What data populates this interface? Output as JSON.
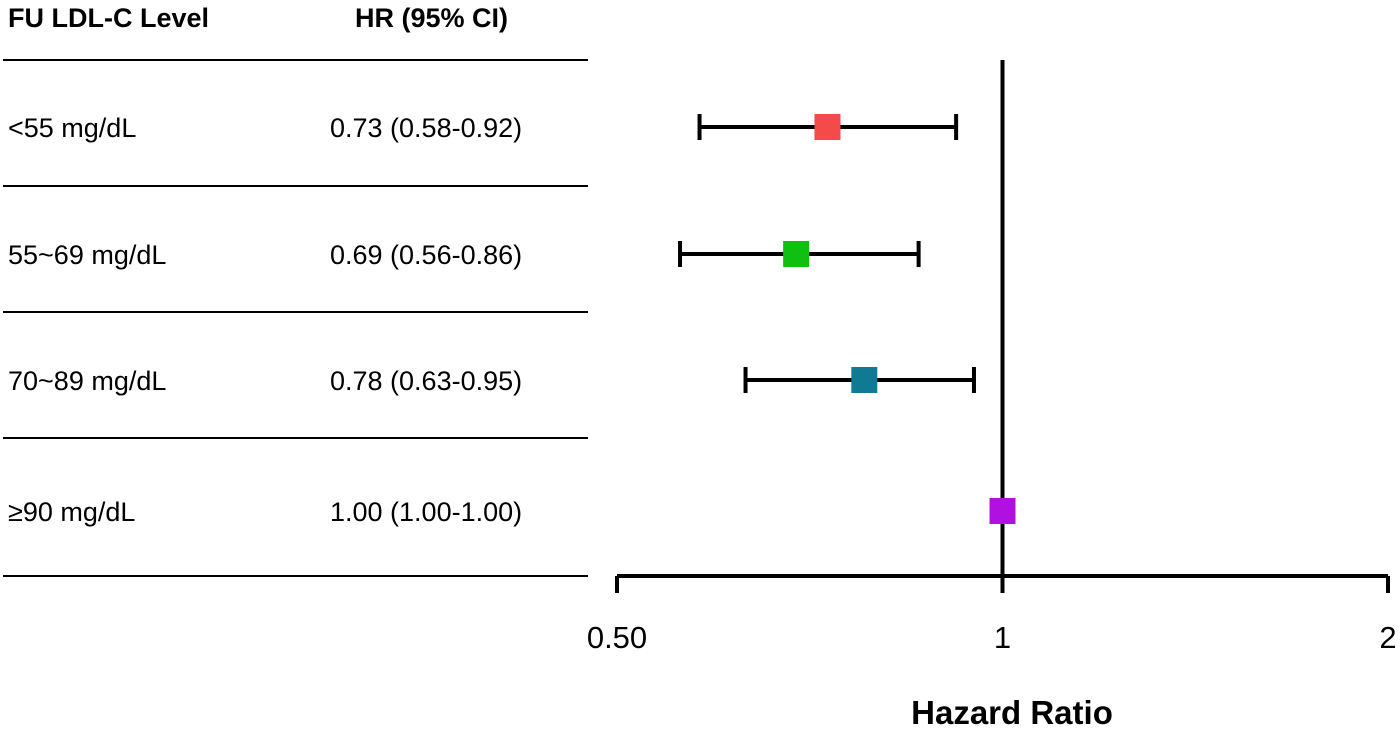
{
  "chart_data": {
    "type": "forest",
    "title": "",
    "xlabel": "Hazard Ratio",
    "x_scale": "log",
    "xlim": [
      0.5,
      2
    ],
    "x_ticks": [
      {
        "value": 0.5,
        "label": "0.50"
      },
      {
        "value": 1,
        "label": "1"
      },
      {
        "value": 2,
        "label": "2"
      }
    ],
    "reference_line": 1,
    "columns": {
      "level": "FU LDL-C Level",
      "hr": "HR (95% CI)"
    },
    "rows": [
      {
        "level": "<55 mg/dL",
        "hr_text": "0.73 (0.58-0.92)",
        "hr": 0.73,
        "lo": 0.58,
        "hi": 0.92,
        "color": "#f44a4a"
      },
      {
        "level": "55~69 mg/dL",
        "hr_text": "0.69 (0.56-0.86)",
        "hr": 0.69,
        "lo": 0.56,
        "hi": 0.86,
        "color": "#10c010"
      },
      {
        "level": "70~89 mg/dL",
        "hr_text": "0.78 (0.63-0.95)",
        "hr": 0.78,
        "lo": 0.63,
        "hi": 0.95,
        "color": "#107a94"
      },
      {
        "level": "≥90 mg/dL",
        "hr_text": "1.00 (1.00-1.00)",
        "hr": 1.0,
        "lo": 1.0,
        "hi": 1.0,
        "color": "#b010e0"
      }
    ]
  }
}
